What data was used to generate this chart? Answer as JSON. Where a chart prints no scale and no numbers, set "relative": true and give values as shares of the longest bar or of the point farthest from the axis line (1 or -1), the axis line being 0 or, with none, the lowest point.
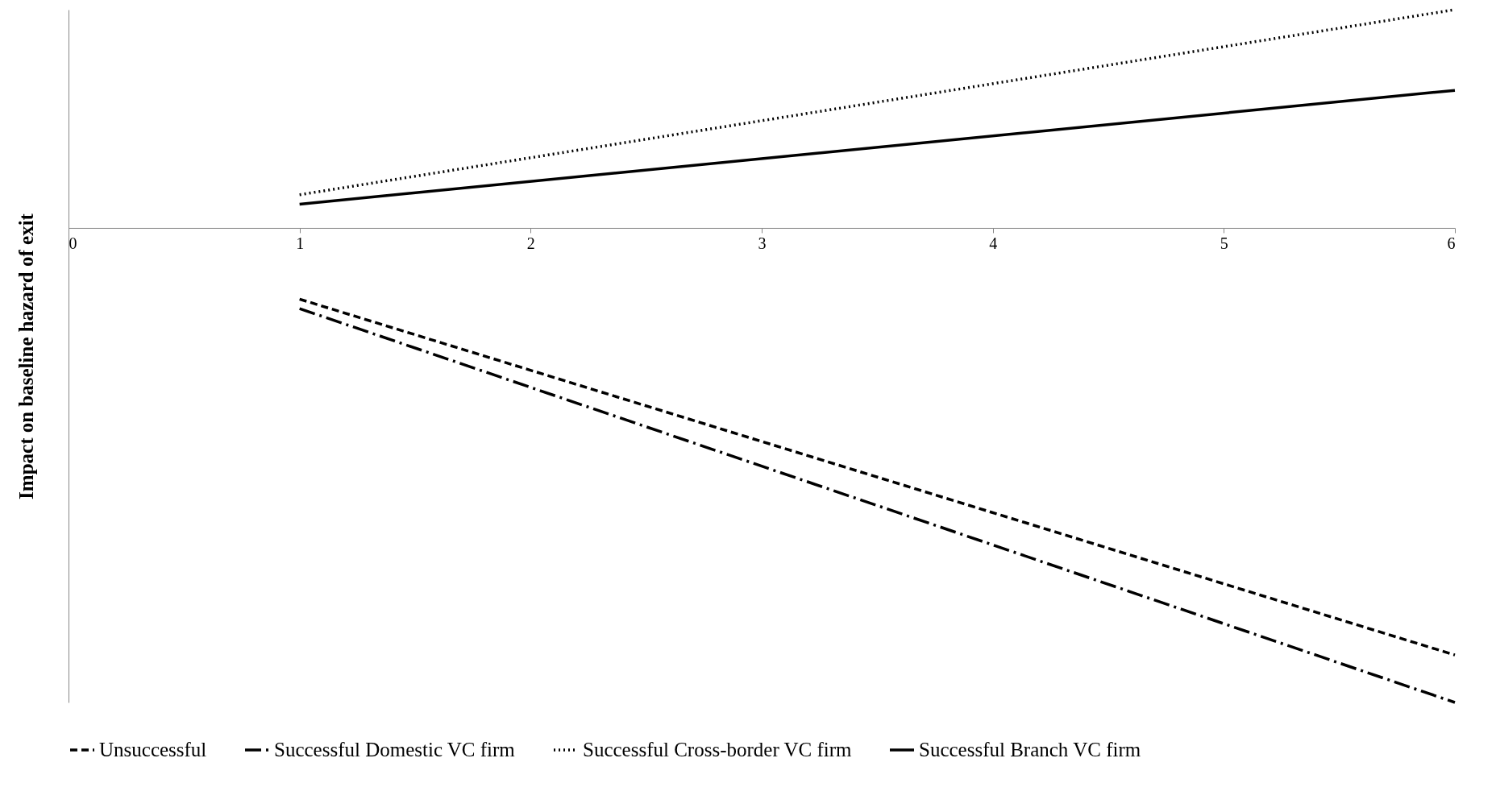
{
  "chart_data": {
    "type": "line",
    "relative": true,
    "ylabel": "Impact on baseline hazard of exit",
    "x": [
      1,
      6
    ],
    "xlim": [
      0,
      6
    ],
    "xticks": [
      0,
      1,
      2,
      3,
      4,
      5,
      6
    ],
    "legend": "bottom",
    "grid": false,
    "marker": "none",
    "series": [
      {
        "name": "Unsuccessful",
        "color": "#000000",
        "line_style": "dashed",
        "values": [
          -0.15,
          -0.9
        ]
      },
      {
        "name": "Successful Domestic VC firm",
        "color": "#000000",
        "line_style": "dashdot",
        "values": [
          -0.17,
          -1
        ]
      },
      {
        "name": "Successful Cross-border VC firm",
        "color": "#000000",
        "line_style": "dotted",
        "values": [
          0.07,
          0.46
        ]
      },
      {
        "name": "Successful Branch VC firm",
        "color": "#000000",
        "line_style": "solid",
        "values": [
          0.05,
          0.29
        ]
      }
    ]
  }
}
